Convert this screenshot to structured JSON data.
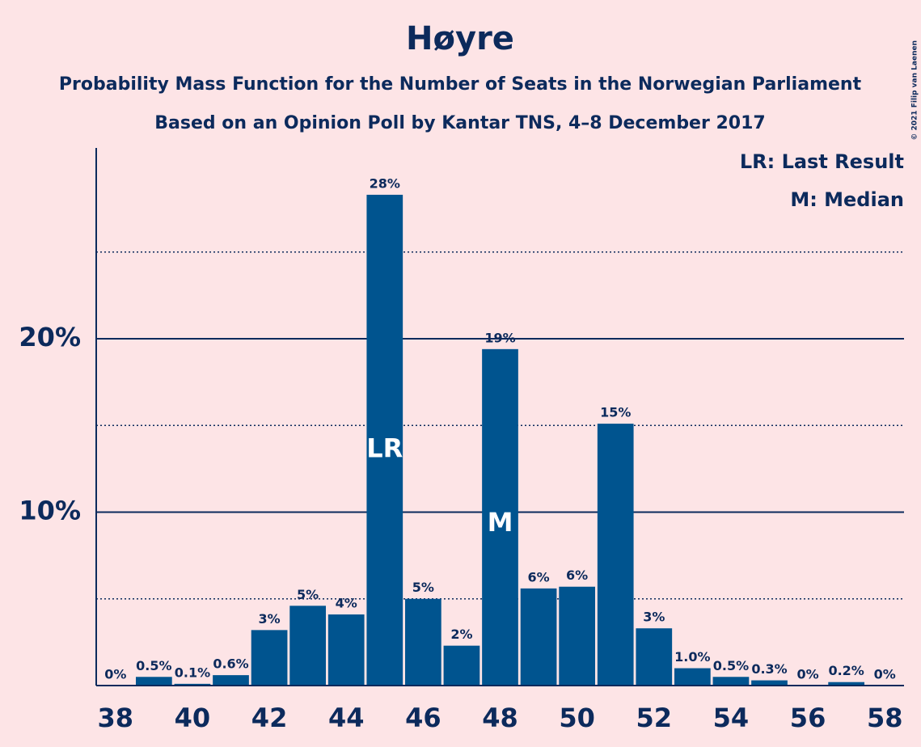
{
  "chart_data": {
    "type": "bar",
    "title": "Høyre",
    "subtitle": [
      "Probability Mass Function for the Number of Seats in the Norwegian Parliament",
      "Based on an Opinion Poll by Kantar TNS, 4–8 December 2017"
    ],
    "x": [
      38,
      39,
      40,
      41,
      42,
      43,
      44,
      45,
      46,
      47,
      48,
      49,
      50,
      51,
      52,
      53,
      54,
      55,
      56,
      57,
      58
    ],
    "values": [
      0,
      0.5,
      0.1,
      0.6,
      3.2,
      4.6,
      4.1,
      28.3,
      5.0,
      2.3,
      19.4,
      5.6,
      5.7,
      15.1,
      3.3,
      1.0,
      0.5,
      0.3,
      0,
      0.2,
      0
    ],
    "value_labels": [
      "0%",
      "0.5%",
      "0.1%",
      "0.6%",
      "3%",
      "5%",
      "4%",
      "28%",
      "5%",
      "2%",
      "19%",
      "6%",
      "6%",
      "15%",
      "3%",
      "1.0%",
      "0.5%",
      "0.3%",
      "0%",
      "0.2%",
      "0%"
    ],
    "color": "#00548f",
    "xlim": [
      37.5,
      58.5
    ],
    "xticks": [
      38,
      40,
      42,
      44,
      46,
      48,
      50,
      52,
      54,
      56,
      58
    ],
    "ylim": [
      0,
      31
    ],
    "yticks": [
      {
        "value": 10,
        "label": "10%"
      },
      {
        "value": 20,
        "label": "20%"
      }
    ],
    "minor_yticks": [
      5,
      15,
      25
    ],
    "grid": true,
    "annotations": [
      {
        "x": 45,
        "label": "LR"
      },
      {
        "x": 48,
        "label": "M"
      }
    ],
    "legend": [
      "LR: Last Result",
      "M: Median"
    ],
    "legend_position": "top-right",
    "copyright": "© 2021 Filip van Laenen"
  }
}
